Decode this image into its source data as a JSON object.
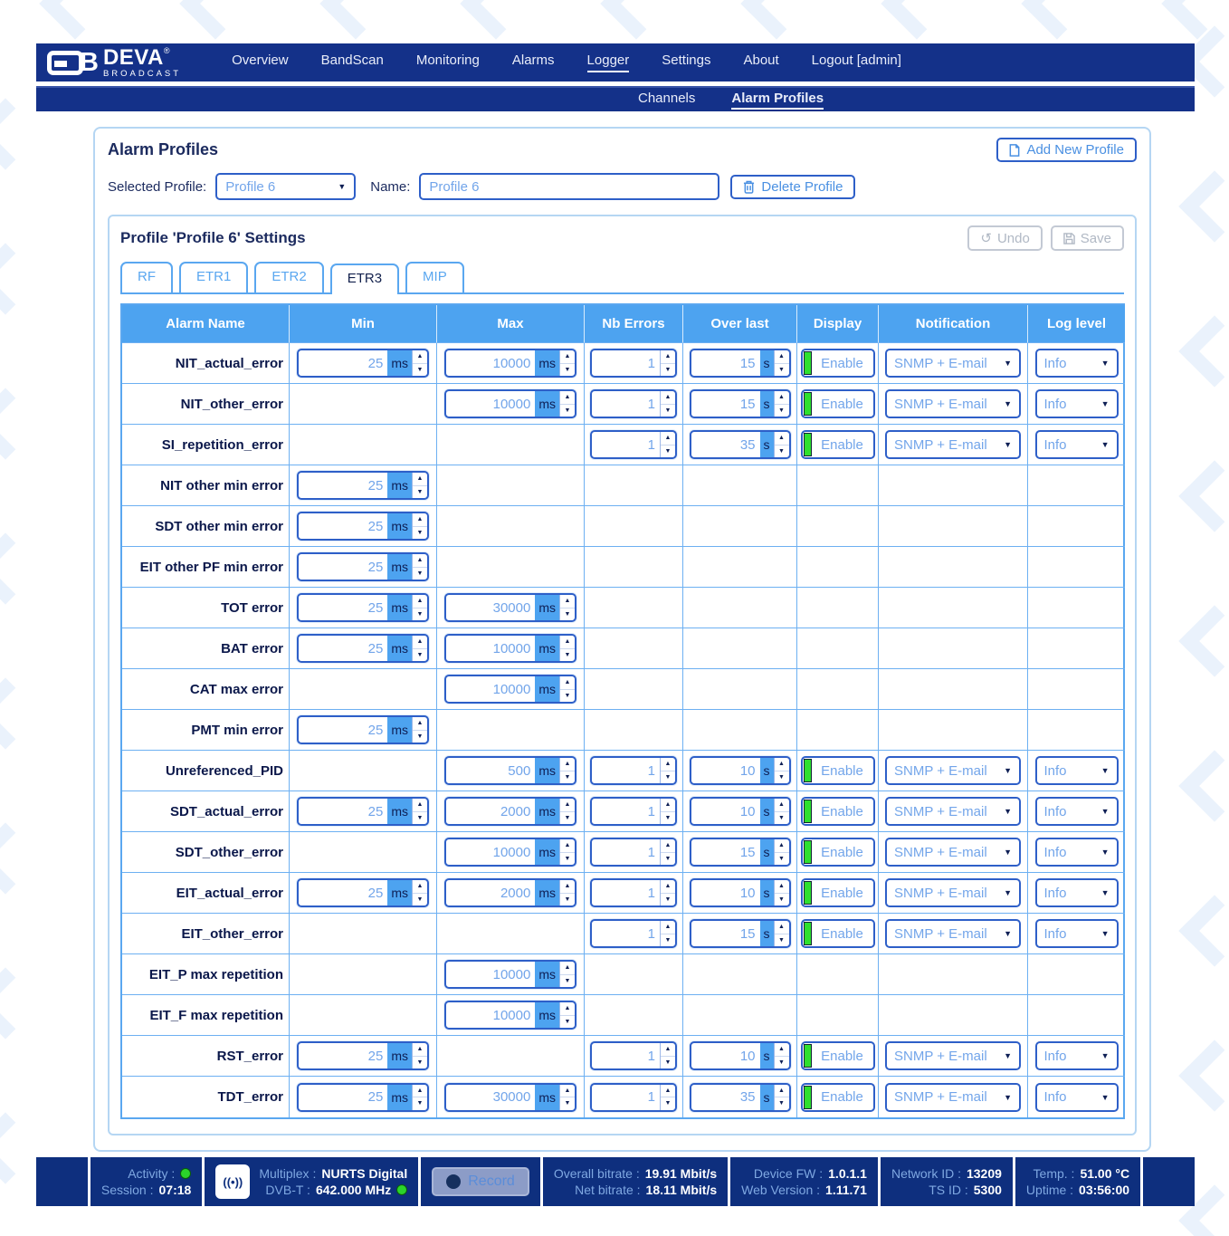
{
  "nav": {
    "brand": {
      "mark": "B",
      "name": "DEVA",
      "registered": "®",
      "sub": "BROADCAST"
    },
    "items": [
      {
        "label": "Overview"
      },
      {
        "label": "BandScan"
      },
      {
        "label": "Monitoring"
      },
      {
        "label": "Alarms"
      },
      {
        "label": "Logger"
      },
      {
        "label": "Settings"
      },
      {
        "label": "About"
      },
      {
        "label": "Logout [admin]"
      }
    ],
    "active": "Logger",
    "subitems": [
      {
        "label": "Channels"
      },
      {
        "label": "Alarm Profiles"
      }
    ],
    "active_sub": "Alarm Profiles"
  },
  "page": {
    "title": "Alarm Profiles",
    "add_button": "Add New Profile",
    "selected_profile_label": "Selected Profile:",
    "selected_profile_value": "Profile 6",
    "name_label": "Name:",
    "name_value": "Profile 6",
    "delete_button": "Delete Profile"
  },
  "panel": {
    "title": "Profile 'Profile 6' Settings",
    "undo_button": "Undo",
    "save_button": "Save",
    "tabs": [
      "RF",
      "ETR1",
      "ETR2",
      "ETR3",
      "MIP"
    ],
    "active_tab": "ETR3"
  },
  "table": {
    "headers": [
      "Alarm Name",
      "Min",
      "Max",
      "Nb Errors",
      "Over last",
      "Display",
      "Notification",
      "Log level"
    ],
    "min_unit": "ms",
    "max_unit": "ms",
    "over_unit": "s",
    "rows": [
      {
        "name": "NIT_actual_error",
        "min": "25",
        "max": "10000",
        "nb": "1",
        "over": "15",
        "display": "Enable",
        "notification": "SNMP + E-mail",
        "log_level": "Info"
      },
      {
        "name": "NIT_other_error",
        "min": null,
        "max": "10000",
        "nb": "1",
        "over": "15",
        "display": "Enable",
        "notification": "SNMP + E-mail",
        "log_level": "Info"
      },
      {
        "name": "SI_repetition_error",
        "min": null,
        "max": null,
        "nb": "1",
        "over": "35",
        "display": "Enable",
        "notification": "SNMP + E-mail",
        "log_level": "Info"
      },
      {
        "name": "NIT other min error",
        "min": "25",
        "max": null,
        "nb": null,
        "over": null,
        "display": null,
        "notification": null,
        "log_level": null
      },
      {
        "name": "SDT other min error",
        "min": "25",
        "max": null,
        "nb": null,
        "over": null,
        "display": null,
        "notification": null,
        "log_level": null
      },
      {
        "name": "EIT other PF min error",
        "min": "25",
        "max": null,
        "nb": null,
        "over": null,
        "display": null,
        "notification": null,
        "log_level": null
      },
      {
        "name": "TOT error",
        "min": "25",
        "max": "30000",
        "nb": null,
        "over": null,
        "display": null,
        "notification": null,
        "log_level": null
      },
      {
        "name": "BAT error",
        "min": "25",
        "max": "10000",
        "nb": null,
        "over": null,
        "display": null,
        "notification": null,
        "log_level": null
      },
      {
        "name": "CAT max error",
        "min": null,
        "max": "10000",
        "nb": null,
        "over": null,
        "display": null,
        "notification": null,
        "log_level": null
      },
      {
        "name": "PMT min error",
        "min": "25",
        "max": null,
        "nb": null,
        "over": null,
        "display": null,
        "notification": null,
        "log_level": null
      },
      {
        "name": "Unreferenced_PID",
        "min": null,
        "max": "500",
        "nb": "1",
        "over": "10",
        "display": "Enable",
        "notification": "SNMP + E-mail",
        "log_level": "Info"
      },
      {
        "name": "SDT_actual_error",
        "min": "25",
        "max": "2000",
        "nb": "1",
        "over": "10",
        "display": "Enable",
        "notification": "SNMP + E-mail",
        "log_level": "Info"
      },
      {
        "name": "SDT_other_error",
        "min": null,
        "max": "10000",
        "nb": "1",
        "over": "15",
        "display": "Enable",
        "notification": "SNMP + E-mail",
        "log_level": "Info"
      },
      {
        "name": "EIT_actual_error",
        "min": "25",
        "max": "2000",
        "nb": "1",
        "over": "10",
        "display": "Enable",
        "notification": "SNMP + E-mail",
        "log_level": "Info"
      },
      {
        "name": "EIT_other_error",
        "min": null,
        "max": null,
        "nb": "1",
        "over": "15",
        "display": "Enable",
        "notification": "SNMP + E-mail",
        "log_level": "Info"
      },
      {
        "name": "EIT_P max repetition",
        "min": null,
        "max": "10000",
        "nb": null,
        "over": null,
        "display": null,
        "notification": null,
        "log_level": null
      },
      {
        "name": "EIT_F max repetition",
        "min": null,
        "max": "10000",
        "nb": null,
        "over": null,
        "display": null,
        "notification": null,
        "log_level": null
      },
      {
        "name": "RST_error",
        "min": "25",
        "max": null,
        "nb": "1",
        "over": "10",
        "display": "Enable",
        "notification": "SNMP + E-mail",
        "log_level": "Info"
      },
      {
        "name": "TDT_error",
        "min": "25",
        "max": "30000",
        "nb": "1",
        "over": "35",
        "display": "Enable",
        "notification": "SNMP + E-mail",
        "log_level": "Info"
      }
    ]
  },
  "statusbar": {
    "activity_label": "Activity :",
    "session_label": "Session :",
    "session_value": "07:18",
    "multiplex_label": "Multiplex :",
    "multiplex_value": "NURTS Digital",
    "dvbt_label": "DVB-T :",
    "dvbt_value": "642.000 MHz",
    "record_label": "Record",
    "overall_label": "Overall bitrate :",
    "overall_value": "19.91 Mbit/s",
    "net_label": "Net bitrate :",
    "net_value": "18.11 Mbit/s",
    "fw_label": "Device FW :",
    "fw_value": "1.0.1.1",
    "web_label": "Web Version :",
    "web_value": "1.11.71",
    "network_label": "Network ID :",
    "network_value": "13209",
    "tsid_label": "TS ID :",
    "tsid_value": "5300",
    "temp_label": "Temp. :",
    "temp_value": "51.00 °C",
    "uptime_label": "Uptime :",
    "uptime_value": "03:56:00",
    "antenna_glyph": "((•))"
  },
  "colors": {
    "navy": "#143189",
    "statusbar_navy": "#0e2f7e",
    "sky_blue": "#4da3f0",
    "control_border": "#2e5fc8",
    "control_text": "#72a5ea",
    "green_indicator": "#2ee02e",
    "disabled_text": "#b0b8c4",
    "watermark": "#eaf2fc"
  }
}
